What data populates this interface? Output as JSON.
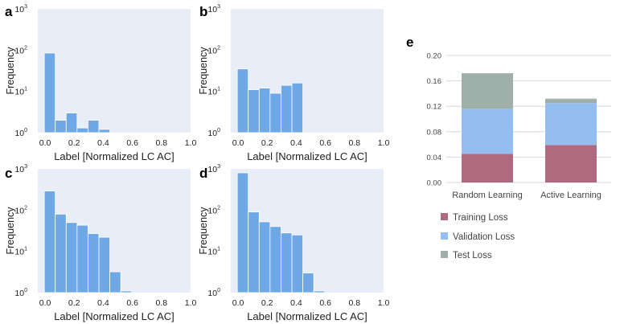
{
  "chart_data": [
    {
      "panel": "a",
      "type": "bar",
      "xlabel": "Label [Normalized LC AC]",
      "ylabel": "Frequency",
      "yscale": "log",
      "ylim": [
        1,
        1000
      ],
      "xlim": [
        -0.05,
        1.0
      ],
      "xticks": [
        "0.0",
        "0.2",
        "0.4",
        "0.6",
        "0.8",
        "1.0"
      ],
      "ytick_base": "10",
      "ytick_exponents": [
        "0",
        "1",
        "2",
        "3"
      ],
      "bin_width": 0.075,
      "bins": [
        {
          "x0": -0.005,
          "count": 85
        },
        {
          "x0": 0.07,
          "count": 2
        },
        {
          "x0": 0.145,
          "count": 3
        },
        {
          "x0": 0.22,
          "count": 1.3
        },
        {
          "x0": 0.295,
          "count": 2
        },
        {
          "x0": 0.37,
          "count": 1.2
        }
      ]
    },
    {
      "panel": "b",
      "type": "bar",
      "xlabel": "Label [Normalized LC AC]",
      "ylabel": "Frequency",
      "yscale": "log",
      "ylim": [
        1,
        1000
      ],
      "xlim": [
        -0.05,
        1.0
      ],
      "xticks": [
        "0.0",
        "0.2",
        "0.4",
        "0.6",
        "0.8",
        "1.0"
      ],
      "ytick_base": "10",
      "ytick_exponents": [
        "0",
        "1",
        "2",
        "3"
      ],
      "bin_width": 0.075,
      "bins": [
        {
          "x0": -0.005,
          "count": 35
        },
        {
          "x0": 0.07,
          "count": 11
        },
        {
          "x0": 0.145,
          "count": 12
        },
        {
          "x0": 0.22,
          "count": 9
        },
        {
          "x0": 0.295,
          "count": 14
        },
        {
          "x0": 0.37,
          "count": 16
        },
        {
          "x0": 0.445,
          "count": 1
        },
        {
          "x0": 0.52,
          "count": 1
        }
      ]
    },
    {
      "panel": "c",
      "type": "bar",
      "xlabel": "Label [Normalized LC AC]",
      "ylabel": "Frequency",
      "yscale": "log",
      "ylim": [
        1,
        1000
      ],
      "xlim": [
        -0.05,
        1.0
      ],
      "xticks": [
        "0.0",
        "0.2",
        "0.4",
        "0.6",
        "0.8",
        "1.0"
      ],
      "ytick_base": "10",
      "ytick_exponents": [
        "0",
        "1",
        "2",
        "3"
      ],
      "bin_width": 0.075,
      "bins": [
        {
          "x0": -0.005,
          "count": 290
        },
        {
          "x0": 0.07,
          "count": 80
        },
        {
          "x0": 0.145,
          "count": 50
        },
        {
          "x0": 0.22,
          "count": 43
        },
        {
          "x0": 0.295,
          "count": 27
        },
        {
          "x0": 0.37,
          "count": 22
        },
        {
          "x0": 0.445,
          "count": 3.2
        },
        {
          "x0": 0.52,
          "count": 1.1
        }
      ]
    },
    {
      "panel": "d",
      "type": "bar",
      "xlabel": "Label [Normalized LC AC]",
      "ylabel": "Frequency",
      "yscale": "log",
      "ylim": [
        1,
        1000
      ],
      "xlim": [
        -0.05,
        1.0
      ],
      "xticks": [
        "0.0",
        "0.2",
        "0.4",
        "0.6",
        "0.8",
        "1.0"
      ],
      "ytick_base": "10",
      "ytick_exponents": [
        "0",
        "1",
        "2",
        "3"
      ],
      "bin_width": 0.075,
      "bins": [
        {
          "x0": -0.005,
          "count": 800
        },
        {
          "x0": 0.07,
          "count": 90
        },
        {
          "x0": 0.145,
          "count": 52
        },
        {
          "x0": 0.22,
          "count": 40
        },
        {
          "x0": 0.295,
          "count": 28
        },
        {
          "x0": 0.37,
          "count": 25
        },
        {
          "x0": 0.445,
          "count": 3
        },
        {
          "x0": 0.52,
          "count": 1.1
        }
      ]
    },
    {
      "panel": "e",
      "type": "bar",
      "stacked": true,
      "categories": [
        "Random Learning",
        "Active Learning"
      ],
      "ylim": [
        0,
        0.2
      ],
      "yticks": [
        "0.00",
        "0.04",
        "0.08",
        "0.12",
        "0.16",
        "0.20"
      ],
      "series": [
        {
          "name": "Training Loss",
          "values": [
            0.045,
            0.059
          ]
        },
        {
          "name": "Validation Loss",
          "values": [
            0.071,
            0.066
          ]
        },
        {
          "name": "Test Loss",
          "values": [
            0.056,
            0.007
          ]
        }
      ]
    }
  ],
  "colors": {
    "histogram_fill": "#6fa8e6",
    "plot_background": "#e8edf7",
    "training_loss": "#b06a7f",
    "validation_loss": "#94bdf0",
    "test_loss": "#9fb0ab"
  }
}
